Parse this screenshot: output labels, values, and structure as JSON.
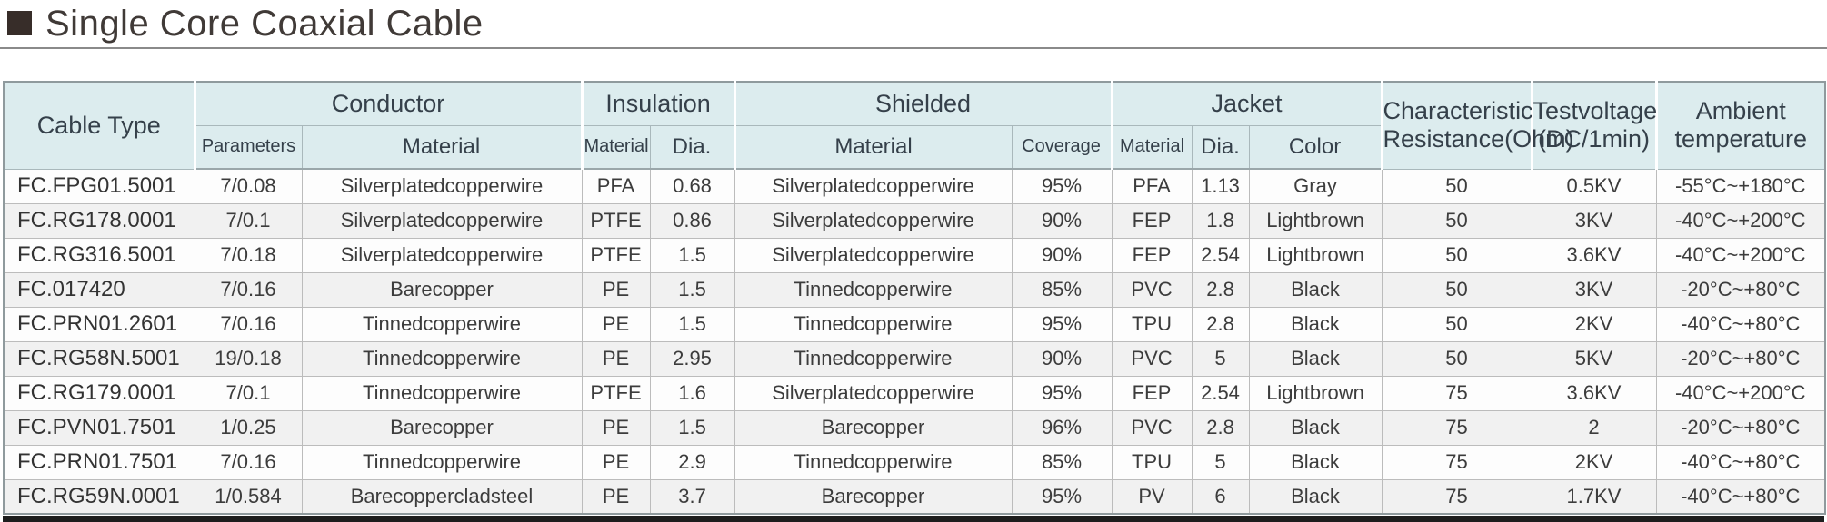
{
  "page": {
    "title": "Single Core Coaxial Cable"
  },
  "table": {
    "header": {
      "cable_type": "Cable Type",
      "conductor": "Conductor",
      "insulation": "Insulation",
      "shielded": "Shielded",
      "jacket": "Jacket",
      "characteristic_resistance": "Characteristic\nResistance(Ohm)",
      "testvoltage": "Testvoltage\n(DC/1min)",
      "ambient_temperature": "Ambient\ntemperature",
      "subheaders": {
        "conductor_parameters": "Parameters",
        "conductor_material": "Material",
        "insulation_material": "Material",
        "insulation_dia": "Dia.",
        "shielded_material": "Material",
        "shielded_coverage": "Coverage",
        "jacket_material": "Material",
        "jacket_dia": "Dia.",
        "jacket_color": "Color"
      }
    },
    "rows": [
      [
        "FC.FPG01.5001",
        "7/0.08",
        "Silverplatedcopperwire",
        "PFA",
        "0.68",
        "Silverplatedcopperwire",
        "95%",
        "PFA",
        "1.13",
        "Gray",
        "50",
        "0.5KV",
        "-55°C~+180°C"
      ],
      [
        "FC.RG178.0001",
        "7/0.1",
        "Silverplatedcopperwire",
        "PTFE",
        "0.86",
        "Silverplatedcopperwire",
        "90%",
        "FEP",
        "1.8",
        "Lightbrown",
        "50",
        "3KV",
        "-40°C~+200°C"
      ],
      [
        "FC.RG316.5001",
        "7/0.18",
        "Silverplatedcopperwire",
        "PTFE",
        "1.5",
        "Silverplatedcopperwire",
        "90%",
        "FEP",
        "2.54",
        "Lightbrown",
        "50",
        "3.6KV",
        "-40°C~+200°C"
      ],
      [
        "FC.017420",
        "7/0.16",
        "Barecopper",
        "PE",
        "1.5",
        "Tinnedcopperwire",
        "85%",
        "PVC",
        "2.8",
        "Black",
        "50",
        "3KV",
        "-20°C~+80°C"
      ],
      [
        "FC.PRN01.2601",
        "7/0.16",
        "Tinnedcopperwire",
        "PE",
        "1.5",
        "Tinnedcopperwire",
        "95%",
        "TPU",
        "2.8",
        "Black",
        "50",
        "2KV",
        "-40°C~+80°C"
      ],
      [
        "FC.RG58N.5001",
        "19/0.18",
        "Tinnedcopperwire",
        "PE",
        "2.95",
        "Tinnedcopperwire",
        "90%",
        "PVC",
        "5",
        "Black",
        "50",
        "5KV",
        "-20°C~+80°C"
      ],
      [
        "FC.RG179.0001",
        "7/0.1",
        "Tinnedcopperwire",
        "PTFE",
        "1.6",
        "Silverplatedcopperwire",
        "95%",
        "FEP",
        "2.54",
        "Lightbrown",
        "75",
        "3.6KV",
        "-40°C~+200°C"
      ],
      [
        "FC.PVN01.7501",
        "1/0.25",
        "Barecopper",
        "PE",
        "1.5",
        "Barecopper",
        "96%",
        "PVC",
        "2.8",
        "Black",
        "75",
        "2",
        "-20°C~+80°C"
      ],
      [
        "FC.PRN01.7501",
        "7/0.16",
        "Tinnedcopperwire",
        "PE",
        "2.9",
        "Tinnedcopperwire",
        "85%",
        "TPU",
        "5",
        "Black",
        "75",
        "2KV",
        "-40°C~+80°C"
      ],
      [
        "FC.RG59N.0001",
        "1/0.584",
        "Barecoppercladsteel",
        "PE",
        "3.7",
        "Barecopper",
        "95%",
        "PV",
        "6",
        "Black",
        "75",
        "1.7KV",
        "-40°C~+80°C"
      ]
    ]
  }
}
